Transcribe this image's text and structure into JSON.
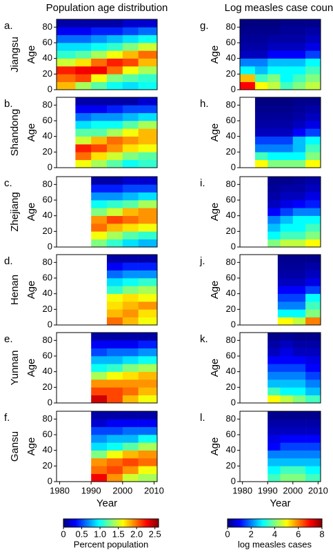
{
  "chart_data": [
    {
      "type": "heatmap",
      "title": "Population age distribution",
      "panel_label": "a.",
      "group": "Jiangsu",
      "ylabel": "Age",
      "colormap": "jet",
      "zlim": [
        0,
        2.6
      ],
      "xlim": [
        1979,
        2011
      ],
      "ylim": [
        0,
        90
      ],
      "yticks": [
        0,
        20,
        40,
        60,
        80
      ],
      "x": [
        1979,
        1985,
        1990,
        1995,
        2000,
        2005,
        2011
      ],
      "y": [
        0,
        10,
        20,
        30,
        40,
        50,
        60,
        70,
        80,
        90
      ],
      "z": [
        [
          1.8,
          1.4,
          1.2,
          1.0,
          0.9,
          1.0
        ],
        [
          2.0,
          2.1,
          1.6,
          1.3,
          1.2,
          1.1
        ],
        [
          2.2,
          2.3,
          2.3,
          2.0,
          1.6,
          1.4
        ],
        [
          1.5,
          1.7,
          2.0,
          2.2,
          2.1,
          1.8
        ],
        [
          1.1,
          1.2,
          1.4,
          1.6,
          1.8,
          2.0
        ],
        [
          0.9,
          0.9,
          1.0,
          1.1,
          1.3,
          1.5
        ],
        [
          0.6,
          0.6,
          0.7,
          0.8,
          0.9,
          1.0
        ],
        [
          0.3,
          0.3,
          0.4,
          0.4,
          0.5,
          0.6
        ],
        [
          0.1,
          0.1,
          0.1,
          0.1,
          0.2,
          0.2
        ]
      ]
    },
    {
      "type": "heatmap",
      "panel_label": "b.",
      "group": "Shandong",
      "ylabel": "Age",
      "colormap": "jet",
      "zlim": [
        0,
        2.6
      ],
      "xlim": [
        1979,
        2011
      ],
      "ylim": [
        0,
        90
      ],
      "yticks": [
        0,
        20,
        40,
        60,
        80
      ],
      "x": [
        1985,
        1990,
        1995,
        2000,
        2005,
        2011
      ],
      "y": [
        0,
        10,
        20,
        30,
        40,
        50,
        60,
        70,
        80,
        90
      ],
      "z": [
        [
          1.6,
          1.4,
          1.2,
          1.0,
          1.1
        ],
        [
          2.0,
          1.7,
          1.5,
          1.3,
          1.2
        ],
        [
          2.2,
          2.1,
          1.9,
          1.7,
          1.6
        ],
        [
          1.5,
          1.8,
          2.0,
          1.9,
          1.8
        ],
        [
          1.2,
          1.2,
          1.4,
          1.6,
          1.8
        ],
        [
          0.9,
          1.0,
          1.0,
          1.2,
          1.4
        ],
        [
          0.6,
          0.7,
          0.7,
          0.8,
          0.9
        ],
        [
          0.3,
          0.3,
          0.4,
          0.5,
          0.5
        ],
        [
          0.1,
          0.1,
          0.1,
          0.1,
          0.2
        ]
      ]
    },
    {
      "type": "heatmap",
      "panel_label": "c.",
      "group": "Zhejiang",
      "ylabel": "Age",
      "colormap": "jet",
      "zlim": [
        0,
        2.6
      ],
      "xlim": [
        1979,
        2011
      ],
      "ylim": [
        0,
        90
      ],
      "yticks": [
        0,
        20,
        40,
        60,
        80
      ],
      "x": [
        1990,
        1995,
        2000,
        2005,
        2011
      ],
      "y": [
        0,
        10,
        20,
        30,
        40,
        50,
        60,
        70,
        80,
        90
      ],
      "z": [
        [
          1.3,
          1.1,
          0.9,
          0.8
        ],
        [
          1.6,
          1.4,
          1.2,
          1.1
        ],
        [
          2.0,
          1.8,
          1.7,
          1.6
        ],
        [
          1.9,
          2.1,
          2.0,
          1.9
        ],
        [
          1.3,
          1.5,
          1.8,
          1.9
        ],
        [
          1.0,
          1.1,
          1.2,
          1.4
        ],
        [
          0.7,
          0.7,
          0.8,
          0.9
        ],
        [
          0.4,
          0.4,
          0.5,
          0.5
        ],
        [
          0.1,
          0.1,
          0.2,
          0.2
        ]
      ]
    },
    {
      "type": "heatmap",
      "panel_label": "d.",
      "group": "Henan",
      "ylabel": "Age",
      "colormap": "jet",
      "zlim": [
        0,
        2.6
      ],
      "xlim": [
        1979,
        2011
      ],
      "ylim": [
        0,
        90
      ],
      "yticks": [
        0,
        20,
        40,
        60,
        80
      ],
      "x": [
        1995,
        2000,
        2005,
        2011
      ],
      "y": [
        0,
        10,
        20,
        30,
        40,
        50,
        60,
        70,
        80,
        90
      ],
      "z": [
        [
          2.0,
          1.8,
          1.6
        ],
        [
          1.8,
          1.9,
          1.7
        ],
        [
          1.7,
          1.8,
          1.9
        ],
        [
          1.6,
          1.7,
          1.6
        ],
        [
          1.1,
          1.3,
          1.4
        ],
        [
          0.9,
          1.0,
          1.1
        ],
        [
          0.6,
          0.7,
          0.7
        ],
        [
          0.3,
          0.4,
          0.4
        ],
        [
          0.1,
          0.1,
          0.1
        ]
      ]
    },
    {
      "type": "heatmap",
      "panel_label": "e.",
      "group": "Yunnan",
      "ylabel": "Age",
      "colormap": "jet",
      "zlim": [
        0,
        2.6
      ],
      "xlim": [
        1979,
        2011
      ],
      "ylim": [
        0,
        90
      ],
      "yticks": [
        0,
        20,
        40,
        60,
        80
      ],
      "x": [
        1990,
        1995,
        2000,
        2005,
        2011
      ],
      "y": [
        0,
        10,
        20,
        30,
        40,
        50,
        60,
        70,
        80,
        90
      ],
      "z": [
        [
          2.4,
          2.1,
          1.8,
          1.6
        ],
        [
          2.1,
          2.1,
          2.0,
          1.8
        ],
        [
          1.9,
          1.9,
          1.9,
          1.9
        ],
        [
          1.4,
          1.6,
          1.7,
          1.8
        ],
        [
          1.0,
          1.1,
          1.3,
          1.4
        ],
        [
          0.8,
          0.8,
          0.9,
          1.0
        ],
        [
          0.5,
          0.6,
          0.6,
          0.7
        ],
        [
          0.3,
          0.3,
          0.3,
          0.4
        ],
        [
          0.1,
          0.1,
          0.1,
          0.1
        ]
      ]
    },
    {
      "type": "heatmap",
      "panel_label": "f.",
      "group": "Gansu",
      "ylabel": "Age",
      "xlabel": "Year",
      "colormap": "jet",
      "zlim": [
        0,
        2.6
      ],
      "xlim": [
        1979,
        2011
      ],
      "xticks": [
        1980,
        1990,
        2000,
        2010
      ],
      "ylim": [
        0,
        90
      ],
      "yticks": [
        0,
        20,
        40,
        60,
        80
      ],
      "x": [
        1990,
        1995,
        2000,
        2005,
        2011
      ],
      "y": [
        0,
        10,
        20,
        30,
        40,
        50,
        60,
        70,
        80,
        90
      ],
      "z": [
        [
          2.3,
          1.9,
          1.5,
          1.4
        ],
        [
          2.0,
          2.1,
          1.9,
          1.6
        ],
        [
          1.9,
          2.0,
          2.1,
          2.0
        ],
        [
          1.3,
          1.6,
          1.8,
          1.9
        ],
        [
          0.9,
          1.0,
          1.2,
          1.4
        ],
        [
          0.7,
          0.8,
          0.8,
          1.0
        ],
        [
          0.5,
          0.5,
          0.6,
          0.6
        ],
        [
          0.2,
          0.3,
          0.3,
          0.3
        ],
        [
          0.1,
          0.1,
          0.1,
          0.1
        ]
      ],
      "colorbar": {
        "label": "Percent population",
        "ticks": [
          0,
          0.5,
          {
            "value": 1,
            "label": "1.0"
          },
          1.5,
          {
            "value": 2,
            "label": "2.0"
          },
          2.5
        ]
      }
    },
    {
      "type": "heatmap",
      "title": "Log measles case count",
      "panel_label": "g.",
      "ylabel": "Age",
      "colormap": "jet",
      "zlim": [
        0,
        8
      ],
      "xlim": [
        1979,
        2011
      ],
      "ylim": [
        0,
        90
      ],
      "yticks": [
        0,
        20,
        40,
        60,
        80
      ],
      "x": [
        1979,
        1985,
        1990,
        1995,
        2000,
        2005,
        2011
      ],
      "y": [
        0,
        10,
        20,
        30,
        40,
        50,
        60,
        70,
        80,
        90
      ],
      "z": [
        [
          7.0,
          5.0,
          4.5,
          3.5,
          4.0,
          4.5
        ],
        [
          5.5,
          3.5,
          4.0,
          3.0,
          3.5,
          4.0
        ],
        [
          3.0,
          2.5,
          3.0,
          3.0,
          3.0,
          3.5
        ],
        [
          2.0,
          2.0,
          2.5,
          2.5,
          2.5,
          3.0
        ],
        [
          0.5,
          0.5,
          1.0,
          1.0,
          1.0,
          1.5
        ],
        [
          0.3,
          0.3,
          0.5,
          0.5,
          0.5,
          0.8
        ],
        [
          0.2,
          0.2,
          0.3,
          0.3,
          0.3,
          0.5
        ],
        [
          0.1,
          0.1,
          0.1,
          0.2,
          0.2,
          0.3
        ],
        [
          0,
          0,
          0,
          0.1,
          0.1,
          0.1
        ]
      ]
    },
    {
      "type": "heatmap",
      "panel_label": "h.",
      "ylabel": "Age",
      "colormap": "jet",
      "zlim": [
        0,
        8
      ],
      "xlim": [
        1979,
        2011
      ],
      "ylim": [
        0,
        90
      ],
      "yticks": [
        0,
        20,
        40,
        60,
        80
      ],
      "x": [
        1985,
        1990,
        1995,
        2000,
        2005,
        2011
      ],
      "y": [
        0,
        10,
        20,
        30,
        40,
        50,
        60,
        70,
        80,
        90
      ],
      "z": [
        [
          5.0,
          4.0,
          4.0,
          4.0,
          5.0
        ],
        [
          3.5,
          3.0,
          3.0,
          3.0,
          4.0
        ],
        [
          2.0,
          2.0,
          2.0,
          2.5,
          3.5
        ],
        [
          1.5,
          1.5,
          1.5,
          2.5,
          3.0
        ],
        [
          0.5,
          0.5,
          0.5,
          1.0,
          1.5
        ],
        [
          0.3,
          0.3,
          0.3,
          0.5,
          0.8
        ],
        [
          0.2,
          0.2,
          0.2,
          0.3,
          0.5
        ],
        [
          0.1,
          0.1,
          0.1,
          0.2,
          0.3
        ],
        [
          0,
          0,
          0,
          0.1,
          0.1
        ]
      ]
    },
    {
      "type": "heatmap",
      "panel_label": "i.",
      "ylabel": "Age",
      "colormap": "jet",
      "zlim": [
        0,
        8
      ],
      "xlim": [
        1979,
        2011
      ],
      "ylim": [
        0,
        90
      ],
      "yticks": [
        0,
        20,
        40,
        60,
        80
      ],
      "x": [
        1990,
        1995,
        2000,
        2005,
        2011
      ],
      "y": [
        0,
        10,
        20,
        30,
        40,
        50,
        60,
        70,
        80,
        90
      ],
      "z": [
        [
          4.0,
          4.5,
          4.5,
          5.0
        ],
        [
          3.0,
          3.5,
          3.5,
          4.0
        ],
        [
          2.5,
          3.0,
          3.0,
          3.5
        ],
        [
          2.0,
          2.5,
          3.0,
          3.0
        ],
        [
          1.0,
          1.5,
          2.0,
          2.0
        ],
        [
          0.5,
          0.8,
          1.0,
          1.2
        ],
        [
          0.3,
          0.5,
          0.5,
          0.8
        ],
        [
          0.2,
          0.3,
          0.3,
          0.5
        ],
        [
          0.1,
          0.1,
          0.2,
          0.3
        ]
      ]
    },
    {
      "type": "heatmap",
      "panel_label": "j.",
      "ylabel": "Age",
      "colormap": "jet",
      "zlim": [
        0,
        8
      ],
      "xlim": [
        1979,
        2011
      ],
      "ylim": [
        0,
        90
      ],
      "yticks": [
        0,
        20,
        40,
        60,
        80
      ],
      "x": [
        1994,
        2000,
        2005,
        2011
      ],
      "y": [
        0,
        10,
        20,
        30,
        40,
        50,
        60,
        70,
        80,
        90
      ],
      "z": [
        [
          5.0,
          4.5,
          6.0
        ],
        [
          3.0,
          3.0,
          4.0
        ],
        [
          2.0,
          2.0,
          3.5
        ],
        [
          1.5,
          1.5,
          3.0
        ],
        [
          1.0,
          1.0,
          1.5
        ],
        [
          0.5,
          0.5,
          0.8
        ],
        [
          0.3,
          0.3,
          0.5
        ],
        [
          0.2,
          0.2,
          0.3
        ],
        [
          0.1,
          0.1,
          0.1
        ]
      ]
    },
    {
      "type": "heatmap",
      "panel_label": "k.",
      "ylabel": "Age",
      "colormap": "jet",
      "zlim": [
        0,
        8
      ],
      "xlim": [
        1979,
        2011
      ],
      "ylim": [
        0,
        90
      ],
      "yticks": [
        0,
        20,
        40,
        60,
        80
      ],
      "x": [
        1990,
        1995,
        2000,
        2005,
        2011
      ],
      "y": [
        0,
        10,
        20,
        30,
        40,
        50,
        60,
        70,
        80,
        90
      ],
      "z": [
        [
          5.0,
          4.5,
          4.0,
          3.5
        ],
        [
          3.5,
          3.0,
          3.0,
          2.5
        ],
        [
          2.5,
          2.5,
          2.5,
          2.0
        ],
        [
          2.0,
          2.0,
          2.0,
          1.5
        ],
        [
          1.5,
          1.5,
          1.5,
          1.0
        ],
        [
          1.0,
          1.0,
          1.0,
          0.8
        ],
        [
          0.5,
          0.8,
          0.5,
          0.5
        ],
        [
          0.3,
          0.5,
          0.3,
          0.3
        ],
        [
          0.1,
          0.2,
          0.1,
          0.1
        ]
      ]
    },
    {
      "type": "heatmap",
      "panel_label": "l.",
      "ylabel": "Age",
      "xlabel": "Year",
      "colormap": "jet",
      "zlim": [
        0,
        8
      ],
      "xlim": [
        1979,
        2011
      ],
      "xticks": [
        1980,
        1990,
        2000,
        2010
      ],
      "ylim": [
        0,
        90
      ],
      "yticks": [
        0,
        20,
        40,
        60,
        80
      ],
      "x": [
        1990,
        1995,
        2000,
        2005,
        2011
      ],
      "y": [
        0,
        10,
        20,
        30,
        40,
        50,
        60,
        70,
        80,
        90
      ],
      "z": [
        [
          3.5,
          4.0,
          4.0,
          3.5
        ],
        [
          3.0,
          3.5,
          3.5,
          3.0
        ],
        [
          2.5,
          2.5,
          2.5,
          2.5
        ],
        [
          2.0,
          2.0,
          2.0,
          2.0
        ],
        [
          1.0,
          1.5,
          1.5,
          1.5
        ],
        [
          0.8,
          1.0,
          1.0,
          1.0
        ],
        [
          0.5,
          0.5,
          0.5,
          0.5
        ],
        [
          0.3,
          0.3,
          0.3,
          0.3
        ],
        [
          0.1,
          0.1,
          0.1,
          0.1
        ]
      ],
      "colorbar": {
        "label": "log measles cases",
        "ticks": [
          0,
          2,
          4,
          6,
          8
        ]
      }
    }
  ]
}
